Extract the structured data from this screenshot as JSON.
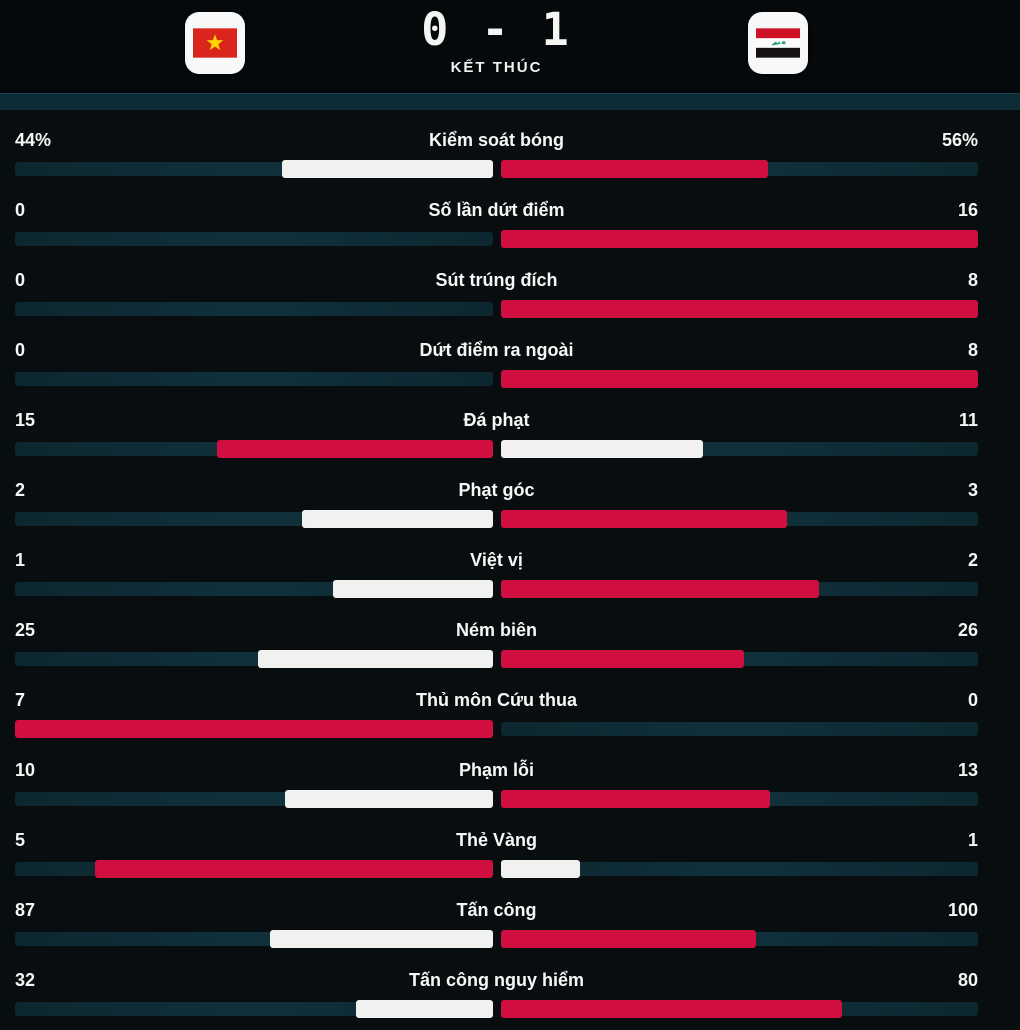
{
  "header": {
    "score": "0 - 1",
    "status": "KẾT THÚC",
    "home_flag_icon": "vietnam-flag",
    "away_flag_icon": "iraq-flag"
  },
  "colors": {
    "background": "#080d10",
    "band": "#0d2c35",
    "track": "#0d2730",
    "bar_red": "#d00e40",
    "bar_white": "#f1f2f0",
    "text": "#f7f8f6"
  },
  "stats": [
    {
      "label": "Kiểm soát bóng",
      "home": 44,
      "away": 56,
      "home_text": "44%",
      "away_text": "56%"
    },
    {
      "label": "Số lần dứt điểm",
      "home": 0,
      "away": 16,
      "home_text": "0",
      "away_text": "16"
    },
    {
      "label": "Sút trúng đích",
      "home": 0,
      "away": 8,
      "home_text": "0",
      "away_text": "8"
    },
    {
      "label": "Dứt điểm ra ngoài",
      "home": 0,
      "away": 8,
      "home_text": "0",
      "away_text": "8"
    },
    {
      "label": "Đá phạt",
      "home": 15,
      "away": 11,
      "home_text": "15",
      "away_text": "11"
    },
    {
      "label": "Phạt góc",
      "home": 2,
      "away": 3,
      "home_text": "2",
      "away_text": "3"
    },
    {
      "label": "Việt vị",
      "home": 1,
      "away": 2,
      "home_text": "1",
      "away_text": "2"
    },
    {
      "label": "Ném biên",
      "home": 25,
      "away": 26,
      "home_text": "25",
      "away_text": "26"
    },
    {
      "label": "Thủ môn Cứu thua",
      "home": 7,
      "away": 0,
      "home_text": "7",
      "away_text": "0"
    },
    {
      "label": "Phạm lỗi",
      "home": 10,
      "away": 13,
      "home_text": "10",
      "away_text": "13"
    },
    {
      "label": "Thẻ Vàng",
      "home": 5,
      "away": 1,
      "home_text": "5",
      "away_text": "1"
    },
    {
      "label": "Tấn công",
      "home": 87,
      "away": 100,
      "home_text": "87",
      "away_text": "100"
    },
    {
      "label": "Tấn công nguy hiểm",
      "home": 32,
      "away": 80,
      "home_text": "32",
      "away_text": "80"
    }
  ],
  "chart_data": {
    "type": "bar",
    "orientation": "horizontal-paired",
    "title": "0 - 1 KẾT THÚC",
    "categories": [
      "Kiểm soát bóng",
      "Số lần dứt điểm",
      "Sút trúng đích",
      "Dứt điểm ra ngoài",
      "Đá phạt",
      "Phạt góc",
      "Việt vị",
      "Ném biên",
      "Thủ môn Cứu thua",
      "Phạm lỗi",
      "Thẻ Vàng",
      "Tấn công",
      "Tấn công nguy hiểm"
    ],
    "series": [
      {
        "name": "home-vietnam",
        "values": [
          44,
          0,
          0,
          0,
          15,
          2,
          1,
          25,
          7,
          10,
          5,
          87,
          32
        ]
      },
      {
        "name": "away-iraq",
        "values": [
          56,
          16,
          8,
          8,
          11,
          3,
          2,
          26,
          0,
          13,
          1,
          100,
          80
        ]
      }
    ],
    "value_scaling": "each row scaled to home+away total, bars grow outward from center",
    "highlight_rule": "larger value drawn in red, smaller in white",
    "legend_position": "none",
    "grid": false
  }
}
